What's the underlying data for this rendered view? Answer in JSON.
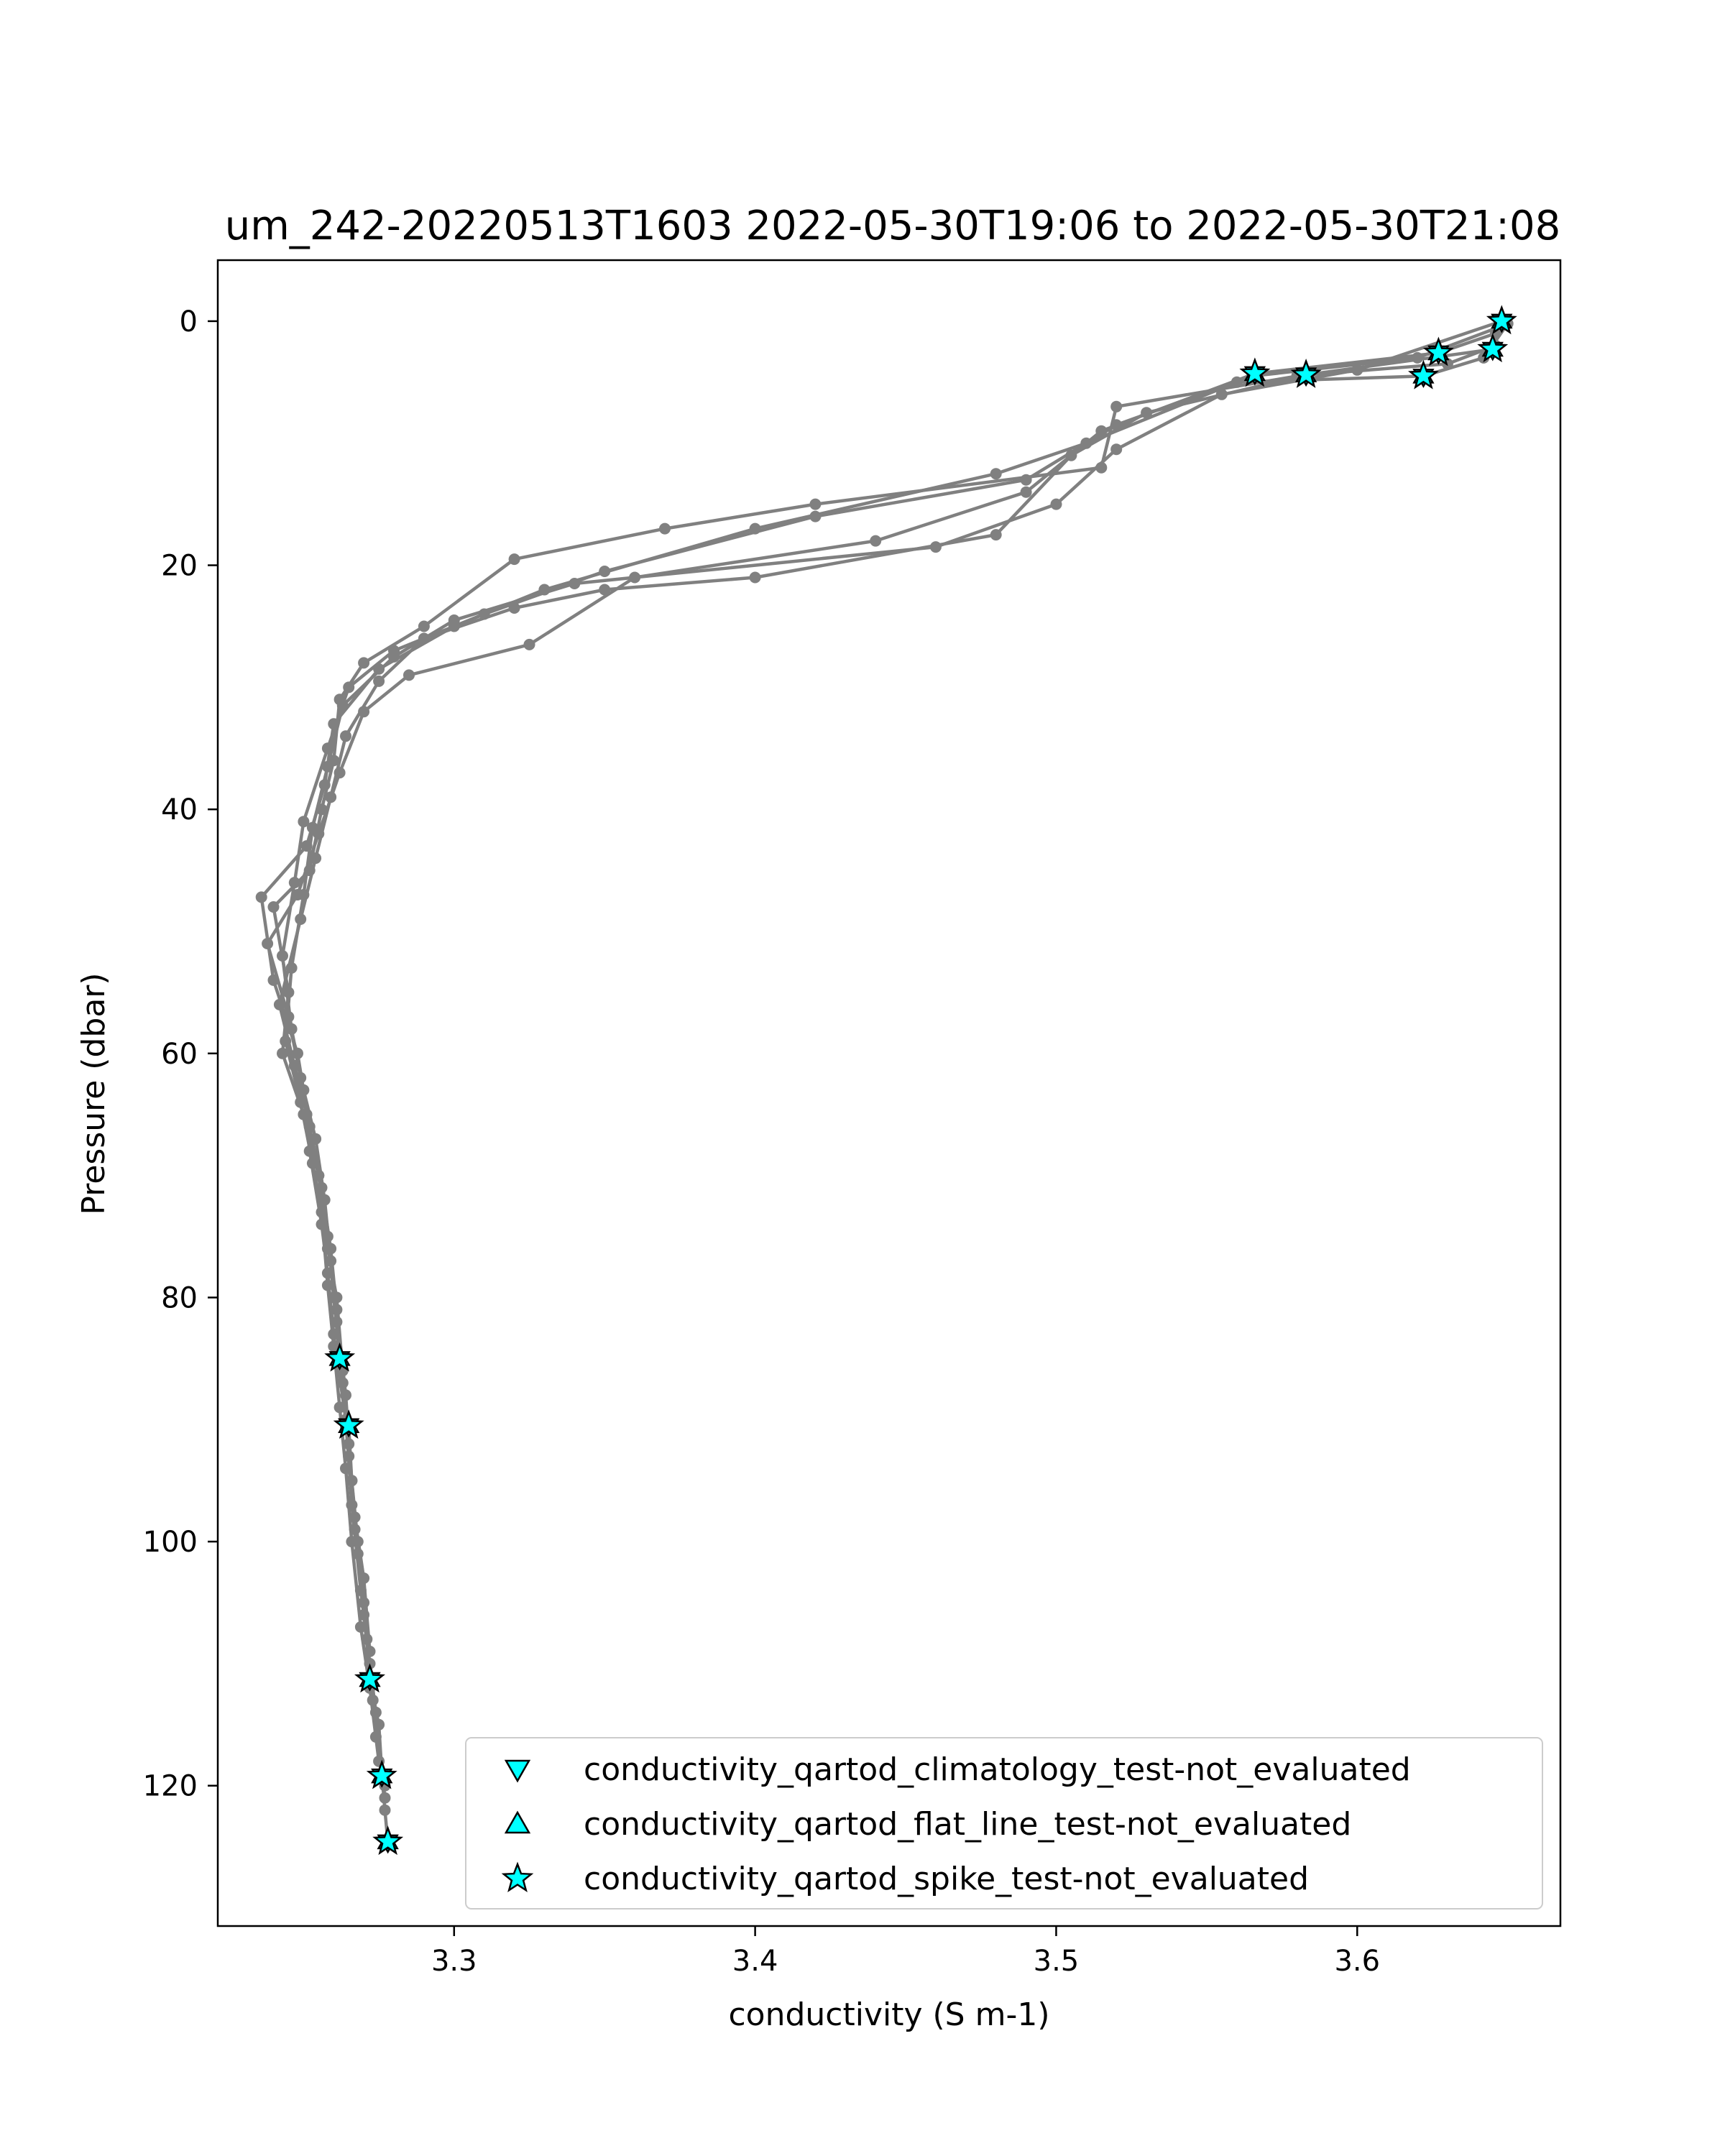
{
  "chart_data": {
    "type": "line",
    "title": "um_242-20220513T1603 2022-05-30T19:06 to 2022-05-30T21:08",
    "xlabel": "conductivity (S m-1)",
    "ylabel": "Pressure (dbar)",
    "xlim": [
      3.2215,
      3.6675
    ],
    "ylim": [
      131.5,
      -5
    ],
    "y_inverted": true,
    "grid": false,
    "x_ticks": [
      3.3,
      3.4,
      3.5,
      3.6
    ],
    "x_tick_labels": [
      "3.3",
      "3.4",
      "3.5",
      "3.6"
    ],
    "y_ticks": [
      0,
      20,
      40,
      60,
      80,
      100,
      120
    ],
    "y_tick_labels": [
      "0",
      "20",
      "40",
      "60",
      "80",
      "100",
      "120"
    ],
    "line_color": "#808080",
    "marker_fill": "#00ffff",
    "marker_edge": "#000000",
    "legend_position": "lower-right",
    "legend": [
      {
        "label": "conductivity_qartod_climatology_test-not_evaluated",
        "marker": "triangle-down"
      },
      {
        "label": "conductivity_qartod_flat_line_test-not_evaluated",
        "marker": "triangle-up"
      },
      {
        "label": "conductivity_qartod_spike_test-not_evaluated",
        "marker": "star"
      }
    ],
    "series": [
      {
        "points": [
          [
            3.648,
            0
          ],
          [
            3.645,
            2.3
          ],
          [
            3.58,
            4.5
          ],
          [
            3.52,
            7
          ],
          [
            3.515,
            12
          ],
          [
            3.42,
            15
          ],
          [
            3.37,
            17
          ],
          [
            3.32,
            19.5
          ],
          [
            3.29,
            25
          ],
          [
            3.27,
            28
          ],
          [
            3.262,
            31
          ],
          [
            3.26,
            36
          ],
          [
            3.256,
            40
          ],
          [
            3.252,
            45
          ],
          [
            3.24,
            48
          ],
          [
            3.245,
            55
          ],
          [
            3.243,
            60
          ],
          [
            3.25,
            65
          ],
          [
            3.255,
            70
          ],
          [
            3.258,
            75
          ],
          [
            3.26,
            80
          ],
          [
            3.262,
            85
          ],
          [
            3.265,
            90.5
          ],
          [
            3.266,
            95
          ],
          [
            3.268,
            100
          ],
          [
            3.27,
            105
          ],
          [
            3.272,
            111.3
          ],
          [
            3.275,
            115
          ],
          [
            3.276,
            119
          ],
          [
            3.277,
            122
          ],
          [
            3.278,
            124.6
          ]
        ]
      },
      {
        "points": [
          [
            3.647,
            0.5
          ],
          [
            3.62,
            3
          ],
          [
            3.565,
            4.5
          ],
          [
            3.52,
            8.5
          ],
          [
            3.49,
            13
          ],
          [
            3.42,
            16
          ],
          [
            3.35,
            20.5
          ],
          [
            3.31,
            24
          ],
          [
            3.28,
            27
          ],
          [
            3.265,
            30
          ],
          [
            3.258,
            35
          ],
          [
            3.25,
            41
          ],
          [
            3.247,
            46
          ],
          [
            3.243,
            52
          ],
          [
            3.246,
            58
          ],
          [
            3.25,
            63
          ],
          [
            3.252,
            68
          ],
          [
            3.256,
            74
          ],
          [
            3.258,
            78
          ],
          [
            3.26,
            83
          ],
          [
            3.264,
            90
          ],
          [
            3.266,
            97
          ],
          [
            3.269,
            104
          ],
          [
            3.272,
            110
          ],
          [
            3.274,
            116
          ]
        ]
      },
      {
        "points": [
          [
            3.646,
            1
          ],
          [
            3.627,
            2.6
          ],
          [
            3.566,
            4.3
          ],
          [
            3.515,
            9
          ],
          [
            3.49,
            14
          ],
          [
            3.44,
            18
          ],
          [
            3.36,
            21
          ],
          [
            3.325,
            26.5
          ],
          [
            3.285,
            29
          ],
          [
            3.27,
            32
          ],
          [
            3.262,
            37
          ],
          [
            3.255,
            42
          ],
          [
            3.248,
            47
          ],
          [
            3.238,
            51
          ],
          [
            3.245,
            57
          ],
          [
            3.249,
            62
          ],
          [
            3.254,
            67
          ],
          [
            3.257,
            72
          ],
          [
            3.259,
            77
          ],
          [
            3.261,
            82
          ],
          [
            3.263,
            87
          ],
          [
            3.265,
            93
          ],
          [
            3.267,
            99
          ],
          [
            3.27,
            106
          ],
          [
            3.273,
            113
          ],
          [
            3.277,
            120
          ]
        ]
      },
      {
        "points": [
          [
            3.65,
            0.2
          ],
          [
            3.642,
            3
          ],
          [
            3.622,
            4.5
          ],
          [
            3.56,
            5
          ],
          [
            3.51,
            10
          ],
          [
            3.48,
            12.5
          ],
          [
            3.4,
            17
          ],
          [
            3.33,
            22
          ],
          [
            3.3,
            25
          ],
          [
            3.275,
            28.5
          ],
          [
            3.26,
            33
          ],
          [
            3.257,
            38
          ],
          [
            3.251,
            43
          ],
          [
            3.236,
            47.2
          ],
          [
            3.24,
            54
          ],
          [
            3.248,
            60
          ],
          [
            3.252,
            66
          ],
          [
            3.256,
            71
          ],
          [
            3.259,
            76
          ],
          [
            3.261,
            81
          ],
          [
            3.264,
            88
          ],
          [
            3.266,
            95
          ],
          [
            3.268,
            101
          ],
          [
            3.271,
            108
          ],
          [
            3.274,
            114
          ],
          [
            3.277,
            121
          ]
        ]
      },
      {
        "points": [
          [
            3.648,
            0
          ],
          [
            3.6,
            4
          ],
          [
            3.555,
            6
          ],
          [
            3.52,
            10.5
          ],
          [
            3.5,
            15
          ],
          [
            3.46,
            18.5
          ],
          [
            3.34,
            21.5
          ],
          [
            3.3,
            24.5
          ],
          [
            3.28,
            27.5
          ],
          [
            3.263,
            31.5
          ],
          [
            3.258,
            36.5
          ],
          [
            3.253,
            41.5
          ],
          [
            3.25,
            47
          ],
          [
            3.246,
            53
          ],
          [
            3.244,
            59
          ],
          [
            3.249,
            64
          ],
          [
            3.253,
            69
          ],
          [
            3.256,
            73
          ],
          [
            3.258,
            79
          ],
          [
            3.26,
            84
          ],
          [
            3.262,
            89
          ],
          [
            3.264,
            94
          ],
          [
            3.266,
            100
          ],
          [
            3.269,
            107
          ],
          [
            3.272,
            112
          ],
          [
            3.275,
            118
          ]
        ]
      },
      {
        "points": [
          [
            3.646,
            2
          ],
          [
            3.63,
            3.5
          ],
          [
            3.583,
            4.4
          ],
          [
            3.53,
            7.5
          ],
          [
            3.505,
            11
          ],
          [
            3.48,
            17.5
          ],
          [
            3.4,
            21
          ],
          [
            3.35,
            22
          ],
          [
            3.32,
            23.5
          ],
          [
            3.29,
            26
          ],
          [
            3.275,
            29.5
          ],
          [
            3.264,
            34
          ],
          [
            3.259,
            39
          ],
          [
            3.254,
            44
          ],
          [
            3.249,
            49
          ],
          [
            3.242,
            56
          ],
          [
            3.247,
            61
          ],
          [
            3.251,
            65
          ],
          [
            3.255,
            70
          ],
          [
            3.258,
            76
          ],
          [
            3.261,
            80
          ],
          [
            3.263,
            86
          ],
          [
            3.265,
            92
          ],
          [
            3.267,
            98
          ],
          [
            3.27,
            103
          ],
          [
            3.272,
            109
          ]
        ]
      }
    ],
    "flag_markers": [
      [
        3.648,
        0
      ],
      [
        3.645,
        2.3
      ],
      [
        3.627,
        2.6
      ],
      [
        3.622,
        4.5
      ],
      [
        3.583,
        4.4
      ],
      [
        3.566,
        4.3
      ],
      [
        3.262,
        85
      ],
      [
        3.265,
        90.5
      ],
      [
        3.272,
        111.3
      ],
      [
        3.276,
        119.2
      ],
      [
        3.278,
        124.6
      ]
    ]
  }
}
